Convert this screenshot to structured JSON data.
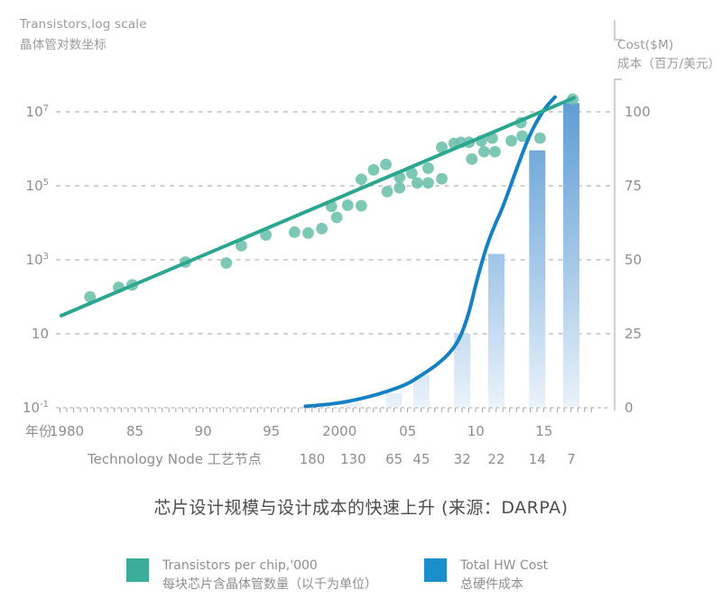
{
  "header_left": {
    "line1": "Transistors,log scale",
    "line2": "晶体管对数坐标"
  },
  "header_right": {
    "line1": "Cost($M)",
    "line2": "成本（百万/美元）"
  },
  "caption": "芯片设计规模与设计成本的快速上升 (来源：DARPA)",
  "axis": {
    "year_axis_label": "年份",
    "year_ticks": [
      {
        "label": "1980",
        "year": 1980
      },
      {
        "label": "85",
        "year": 1985
      },
      {
        "label": "90",
        "year": 1990
      },
      {
        "label": "95",
        "year": 1995
      },
      {
        "label": "2000",
        "year": 2000
      },
      {
        "label": "05",
        "year": 2005
      },
      {
        "label": "10",
        "year": 2010
      },
      {
        "label": "15",
        "year": 2015
      }
    ],
    "left_ticks": [
      {
        "base": "10",
        "sup": "7"
      },
      {
        "base": "10",
        "sup": "5"
      },
      {
        "base": "10",
        "sup": "3"
      },
      {
        "base": "10",
        "sup": ""
      },
      {
        "base": "10",
        "sup": "-1"
      }
    ],
    "right_ticks": [
      "100",
      "75",
      "50",
      "25",
      "0"
    ],
    "node_axis_label": "Technology Node 工艺节点"
  },
  "legend": {
    "items": [
      {
        "label_en": "Transistors per chip,'000",
        "label_zh": "每块芯片含晶体管数量（以千为单位）",
        "color": "#3bae9b"
      },
      {
        "label_en": "Total HW Cost",
        "label_zh": "总硬件成本",
        "color": "#1b8fce"
      }
    ]
  },
  "colors": {
    "teal_line": "#2ba78f",
    "teal_dot": "#6fc1ad",
    "blue_line": "#1581c2",
    "bar_top": "#5d9bd3",
    "bar_mid": "#a6c9e9",
    "bar_bottom": "#eaf2fa",
    "grid": "#b5b5b5",
    "axis_line": "#a9a9a9",
    "axis_text": "#8e8e8e"
  },
  "chart_data": {
    "type": [
      "scatter",
      "line",
      "bar"
    ],
    "title": "芯片设计规模与设计成本的快速上升 (来源：DARPA)",
    "source": "DARPA",
    "x_axis": {
      "label": "年份",
      "range_years": [
        1979,
        2018.5
      ]
    },
    "y_left_axis": {
      "label": "Transistors,log scale 晶体管对数坐标",
      "scale": "log",
      "unit": "thousand transistors per chip",
      "ticks": [
        "1e7",
        "1e5",
        "1e3",
        "10",
        "1e-1"
      ],
      "range": [
        0.1,
        10000000
      ]
    },
    "y_right_axis": {
      "label": "Cost($M) 成本（百万/美元）",
      "scale": "linear",
      "ticks": [
        100,
        75,
        50,
        25,
        0
      ],
      "range": [
        0,
        107
      ]
    },
    "series": [
      {
        "name": "Transistors per chip,'000",
        "type": "scatter",
        "points": [
          [
            1981.7,
            100
          ],
          [
            1983.8,
            180
          ],
          [
            1984.8,
            210
          ],
          [
            1988.7,
            870
          ],
          [
            1991.7,
            820
          ],
          [
            1992.8,
            2400
          ],
          [
            1994.6,
            4700
          ],
          [
            1996.7,
            5600
          ],
          [
            1997.7,
            5300
          ],
          [
            1998.7,
            7000
          ],
          [
            1999.4,
            28000
          ],
          [
            1999.8,
            14000
          ],
          [
            2000.6,
            30000
          ],
          [
            2001.6,
            29000
          ],
          [
            2001.6,
            150000
          ],
          [
            2002.5,
            270000
          ],
          [
            2003.4,
            380000
          ],
          [
            2003.5,
            70000
          ],
          [
            2004.4,
            170000
          ],
          [
            2004.4,
            88000
          ],
          [
            2005.3,
            220000
          ],
          [
            2005.7,
            120000
          ],
          [
            2006.5,
            300000
          ],
          [
            2006.5,
            120000
          ],
          [
            2007.5,
            155000
          ],
          [
            2007.5,
            1100000
          ],
          [
            2008.4,
            1400000
          ],
          [
            2008.9,
            1500000
          ],
          [
            2009.5,
            1500000
          ],
          [
            2009.7,
            530000
          ],
          [
            2010.4,
            1650000
          ],
          [
            2010.6,
            840000
          ],
          [
            2011.2,
            1950000
          ],
          [
            2011.4,
            840000
          ],
          [
            2012.6,
            1650000
          ],
          [
            2013.3,
            5100000
          ],
          [
            2013.4,
            2200000
          ],
          [
            2014.7,
            1950000
          ],
          [
            2017.1,
            22000000
          ]
        ]
      },
      {
        "name": "Transistors trend line",
        "type": "line",
        "points": [
          [
            1979.6,
            31
          ],
          [
            2017.2,
            24000000
          ]
        ]
      },
      {
        "name": "Total HW Cost",
        "type": "line",
        "axis": "right",
        "points": [
          [
            1997.5,
            0.5
          ],
          [
            1999,
            1
          ],
          [
            2000.5,
            2
          ],
          [
            2002,
            3.5
          ],
          [
            2003.5,
            5.5
          ],
          [
            2005,
            8
          ],
          [
            2006,
            11
          ],
          [
            2007,
            14
          ],
          [
            2008,
            18
          ],
          [
            2008.8,
            23
          ],
          [
            2009.5,
            32
          ],
          [
            2010,
            42
          ],
          [
            2010.8,
            55
          ],
          [
            2011.5,
            63
          ],
          [
            2012,
            68
          ],
          [
            2013,
            81
          ],
          [
            2014,
            93
          ],
          [
            2015,
            101
          ],
          [
            2015.8,
            105
          ]
        ]
      },
      {
        "name": "Total HW Cost by technology node",
        "type": "bar",
        "axis": "right",
        "categories": [
          "180",
          "130",
          "65",
          "45",
          "32",
          "22",
          "14",
          "7"
        ],
        "category_years": [
          1998,
          2001,
          2004,
          2006,
          2009,
          2011.5,
          2014.5,
          2017
        ],
        "values": [
          1,
          1.5,
          5,
          11,
          25,
          52,
          87,
          103
        ]
      }
    ]
  }
}
